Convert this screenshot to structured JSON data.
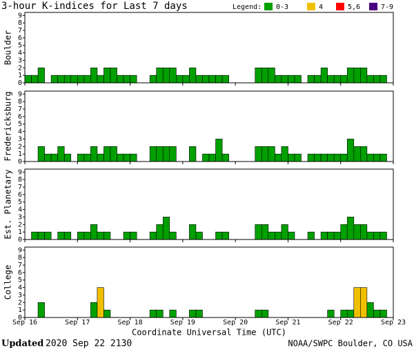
{
  "title": "3-hour K-indices for Last 7 days",
  "legend": {
    "title": "Legend:",
    "items": [
      {
        "label": "0-3",
        "color": "#00a000"
      },
      {
        "label": "4",
        "color": "#f0c000"
      },
      {
        "label": "5,6",
        "color": "#ff0000"
      },
      {
        "label": "7-9",
        "color": "#4b0082"
      }
    ]
  },
  "footer": {
    "updated": "Updated",
    "time": "2020 Sep 22 2130",
    "source": "NOAA/SWPC Boulder, CO USA"
  },
  "chart_data": [
    {
      "type": "bar",
      "ylabel": "Boulder",
      "ylim": [
        0,
        9.4
      ],
      "yticks": [
        0,
        1,
        2,
        3,
        4,
        5,
        6,
        7,
        8,
        9
      ],
      "values": [
        1,
        1,
        2,
        0,
        1,
        1,
        1,
        1,
        1,
        1,
        2,
        1,
        2,
        2,
        1,
        1,
        1,
        0,
        0,
        1,
        2,
        2,
        2,
        1,
        1,
        2,
        1,
        1,
        1,
        1,
        1,
        0,
        0,
        0,
        0,
        2,
        2,
        2,
        1,
        1,
        1,
        1,
        0,
        1,
        1,
        2,
        1,
        1,
        1,
        2,
        2,
        2,
        1,
        1,
        1,
        null
      ]
    },
    {
      "type": "bar",
      "ylabel": "Fredericksburg",
      "ylim": [
        0,
        9.4
      ],
      "yticks": [
        0,
        1,
        2,
        3,
        4,
        5,
        6,
        7,
        8,
        9
      ],
      "values": [
        0,
        0,
        2,
        1,
        1,
        2,
        1,
        0,
        1,
        1,
        2,
        1,
        2,
        2,
        1,
        1,
        1,
        0,
        0,
        2,
        2,
        2,
        2,
        0,
        0,
        2,
        0,
        1,
        1,
        3,
        1,
        0,
        0,
        0,
        0,
        2,
        2,
        2,
        1,
        2,
        1,
        1,
        0,
        1,
        1,
        1,
        1,
        1,
        1,
        3,
        2,
        2,
        1,
        1,
        1,
        null
      ]
    },
    {
      "type": "bar",
      "ylabel": "Est. Planetary",
      "ylim": [
        0,
        9.4
      ],
      "yticks": [
        0,
        1,
        2,
        3,
        4,
        5,
        6,
        7,
        8,
        9
      ],
      "values": [
        0,
        1,
        1,
        1,
        0,
        1,
        1,
        0,
        1,
        1,
        2,
        1,
        1,
        0,
        0,
        1,
        1,
        0,
        0,
        1,
        2,
        3,
        1,
        0,
        0,
        2,
        1,
        0,
        0,
        1,
        1,
        0,
        0,
        0,
        0,
        2,
        2,
        1,
        1,
        2,
        1,
        0,
        0,
        1,
        0,
        1,
        1,
        1,
        2,
        3,
        2,
        2,
        1,
        1,
        1,
        null
      ]
    },
    {
      "type": "bar",
      "ylabel": "College",
      "ylim": [
        0,
        9.4
      ],
      "yticks": [
        0,
        1,
        2,
        3,
        4,
        5,
        6,
        7,
        8,
        9
      ],
      "values": [
        0,
        0,
        2,
        0,
        0,
        0,
        0,
        0,
        0,
        0,
        2,
        4,
        1,
        0,
        0,
        0,
        0,
        0,
        0,
        1,
        1,
        0,
        1,
        0,
        0,
        1,
        1,
        0,
        0,
        0,
        0,
        0,
        0,
        0,
        0,
        1,
        1,
        0,
        0,
        0,
        0,
        0,
        0,
        0,
        0,
        0,
        1,
        0,
        1,
        1,
        4,
        4,
        2,
        1,
        1,
        null
      ],
      "xticks": [
        "Sep 16",
        "Sep 17",
        "Sep 18",
        "Sep 19",
        "Sep 20",
        "Sep 21",
        "Sep 22",
        "Sep 23"
      ],
      "xlabel": "Coordinate Universal Time (UTC)"
    }
  ]
}
